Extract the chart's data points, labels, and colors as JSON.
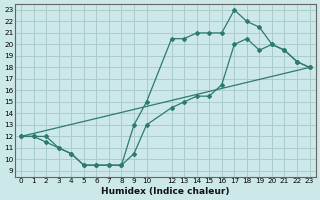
{
  "xlabel": "Humidex (Indice chaleur)",
  "bg_color": "#cce8e8",
  "grid_color": "#aacccc",
  "line_color": "#2d7a6e",
  "xlim": [
    -0.5,
    23.5
  ],
  "ylim": [
    8.5,
    23.5
  ],
  "yticks": [
    9,
    10,
    11,
    12,
    13,
    14,
    15,
    16,
    17,
    18,
    19,
    20,
    21,
    22,
    23
  ],
  "xticks": [
    0,
    1,
    2,
    3,
    4,
    5,
    6,
    7,
    8,
    9,
    10,
    12,
    13,
    14,
    15,
    16,
    17,
    18,
    19,
    20,
    21,
    22,
    23
  ],
  "line1_x": [
    0,
    1,
    2,
    3,
    4,
    5,
    6,
    7,
    8,
    9,
    10,
    12,
    13,
    14,
    15,
    16,
    17,
    18,
    19,
    20,
    21,
    22,
    23
  ],
  "line1_y": [
    12,
    12,
    12,
    11,
    10.5,
    9.5,
    9.5,
    9.5,
    9.5,
    13,
    15,
    20.5,
    20.5,
    21,
    21,
    21,
    23,
    22,
    21.5,
    20,
    19.5,
    18.5,
    18
  ],
  "line2_x": [
    0,
    1,
    2,
    3,
    4,
    5,
    6,
    7,
    8,
    9,
    10,
    12,
    13,
    14,
    15,
    16,
    17,
    18,
    19,
    20,
    21,
    22,
    23
  ],
  "line2_y": [
    12,
    12,
    11.5,
    11,
    10.5,
    9.5,
    9.5,
    9.5,
    9.5,
    10.5,
    13,
    14.5,
    15,
    15.5,
    15.5,
    16.5,
    20,
    20.5,
    19.5,
    20,
    19.5,
    18.5,
    18
  ],
  "line3_x": [
    0,
    23
  ],
  "line3_y": [
    12,
    18
  ]
}
